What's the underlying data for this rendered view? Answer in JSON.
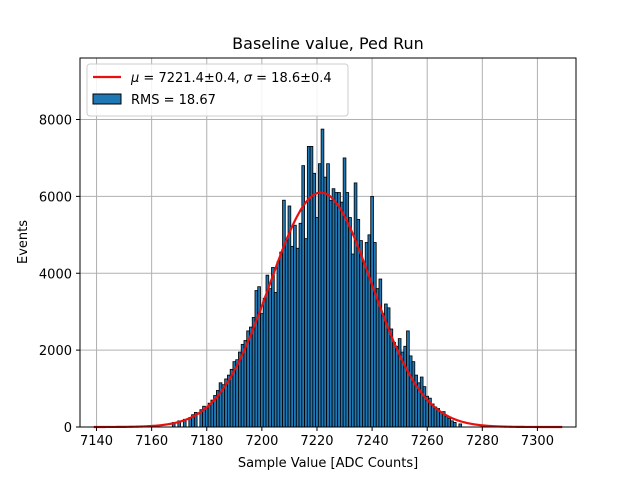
{
  "chart_data": {
    "type": "bar",
    "title": "Baseline value, Ped Run",
    "xlabel": "Sample Value [ADC Counts]",
    "ylabel": "Events",
    "xlim": [
      7134,
      7314
    ],
    "ylim": [
      0,
      9600
    ],
    "xticks": [
      7140,
      7160,
      7180,
      7200,
      7220,
      7240,
      7260,
      7280,
      7300
    ],
    "yticks": [
      0,
      2000,
      4000,
      6000,
      8000
    ],
    "xtick_labels": [
      "7140",
      "7160",
      "7180",
      "7200",
      "7220",
      "7240",
      "7260",
      "7280",
      "7300"
    ],
    "ytick_labels": [
      "0",
      "2000",
      "4000",
      "6000",
      "8000"
    ],
    "grid": true,
    "legend_position": "top-left",
    "bin_width": 1,
    "bar_color": "#1f77b4",
    "bar_edge_color": "#000000",
    "fit_color": "#e8100f",
    "histogram": {
      "name": "RMS = 18.67",
      "rms": 18.67,
      "bins": [
        [
          7168,
          120
        ],
        [
          7170,
          160
        ],
        [
          7172,
          200
        ],
        [
          7174,
          250
        ],
        [
          7175,
          320
        ],
        [
          7176,
          380
        ],
        [
          7178,
          450
        ],
        [
          7179,
          540
        ],
        [
          7180,
          500
        ],
        [
          7181,
          620
        ],
        [
          7182,
          700
        ],
        [
          7183,
          820
        ],
        [
          7184,
          950
        ],
        [
          7185,
          1150
        ],
        [
          7186,
          1100
        ],
        [
          7187,
          1250
        ],
        [
          7188,
          1350
        ],
        [
          7189,
          1500
        ],
        [
          7190,
          1700
        ],
        [
          7191,
          1750
        ],
        [
          7192,
          1950
        ],
        [
          7193,
          2150
        ],
        [
          7194,
          2250
        ],
        [
          7195,
          2500
        ],
        [
          7196,
          2600
        ],
        [
          7197,
          2850
        ],
        [
          7198,
          3550
        ],
        [
          7199,
          3650
        ],
        [
          7200,
          2950
        ],
        [
          7201,
          3350
        ],
        [
          7202,
          3950
        ],
        [
          7203,
          3600
        ],
        [
          7204,
          4150
        ],
        [
          7205,
          3500
        ],
        [
          7206,
          4300
        ],
        [
          7207,
          4550
        ],
        [
          7208,
          5900
        ],
        [
          7209,
          4850
        ],
        [
          7210,
          5750
        ],
        [
          7211,
          4700
        ],
        [
          7212,
          5250
        ],
        [
          7213,
          4650
        ],
        [
          7214,
          5300
        ],
        [
          7215,
          6800
        ],
        [
          7216,
          4900
        ],
        [
          7217,
          7300
        ],
        [
          7218,
          7300
        ],
        [
          7219,
          6600
        ],
        [
          7220,
          5450
        ],
        [
          7221,
          6850
        ],
        [
          7222,
          7750
        ],
        [
          7223,
          6500
        ],
        [
          7224,
          6850
        ],
        [
          7225,
          5900
        ],
        [
          7226,
          6200
        ],
        [
          7227,
          6100
        ],
        [
          7228,
          6100
        ],
        [
          7229,
          5850
        ],
        [
          7230,
          7000
        ],
        [
          7231,
          6100
        ],
        [
          7232,
          5450
        ],
        [
          7233,
          4500
        ],
        [
          7234,
          6350
        ],
        [
          7235,
          5400
        ],
        [
          7236,
          4850
        ],
        [
          7237,
          4250
        ],
        [
          7238,
          4800
        ],
        [
          7239,
          5000
        ],
        [
          7240,
          6000
        ],
        [
          7241,
          4800
        ],
        [
          7242,
          3600
        ],
        [
          7243,
          3850
        ],
        [
          7244,
          2950
        ],
        [
          7245,
          3200
        ],
        [
          7246,
          3100
        ],
        [
          7247,
          2550
        ],
        [
          7248,
          2200
        ],
        [
          7249,
          2100
        ],
        [
          7250,
          2300
        ],
        [
          7251,
          1950
        ],
        [
          7252,
          2100
        ],
        [
          7253,
          2500
        ],
        [
          7254,
          1850
        ],
        [
          7255,
          1700
        ],
        [
          7256,
          1350
        ],
        [
          7257,
          1150
        ],
        [
          7258,
          1300
        ],
        [
          7259,
          1050
        ],
        [
          7260,
          800
        ],
        [
          7261,
          750
        ],
        [
          7262,
          600
        ],
        [
          7263,
          520
        ],
        [
          7264,
          480
        ],
        [
          7265,
          380
        ],
        [
          7266,
          400
        ],
        [
          7267,
          280
        ],
        [
          7268,
          220
        ],
        [
          7269,
          160
        ],
        [
          7270,
          120
        ],
        [
          7272,
          80
        ]
      ]
    },
    "fit": {
      "name": "$\\mu = 7221.4\\pm0.4$, $\\sigma = 18.6\\pm0.4$",
      "legend_mu": "μ",
      "legend_mu_rest": " = 7221.4±0.4, ",
      "legend_sigma": "σ",
      "legend_sigma_rest": " = 18.6±0.4",
      "mu": 7221.4,
      "sigma": 18.6,
      "amplitude": 6100,
      "x_range": [
        7139,
        7309
      ]
    }
  }
}
